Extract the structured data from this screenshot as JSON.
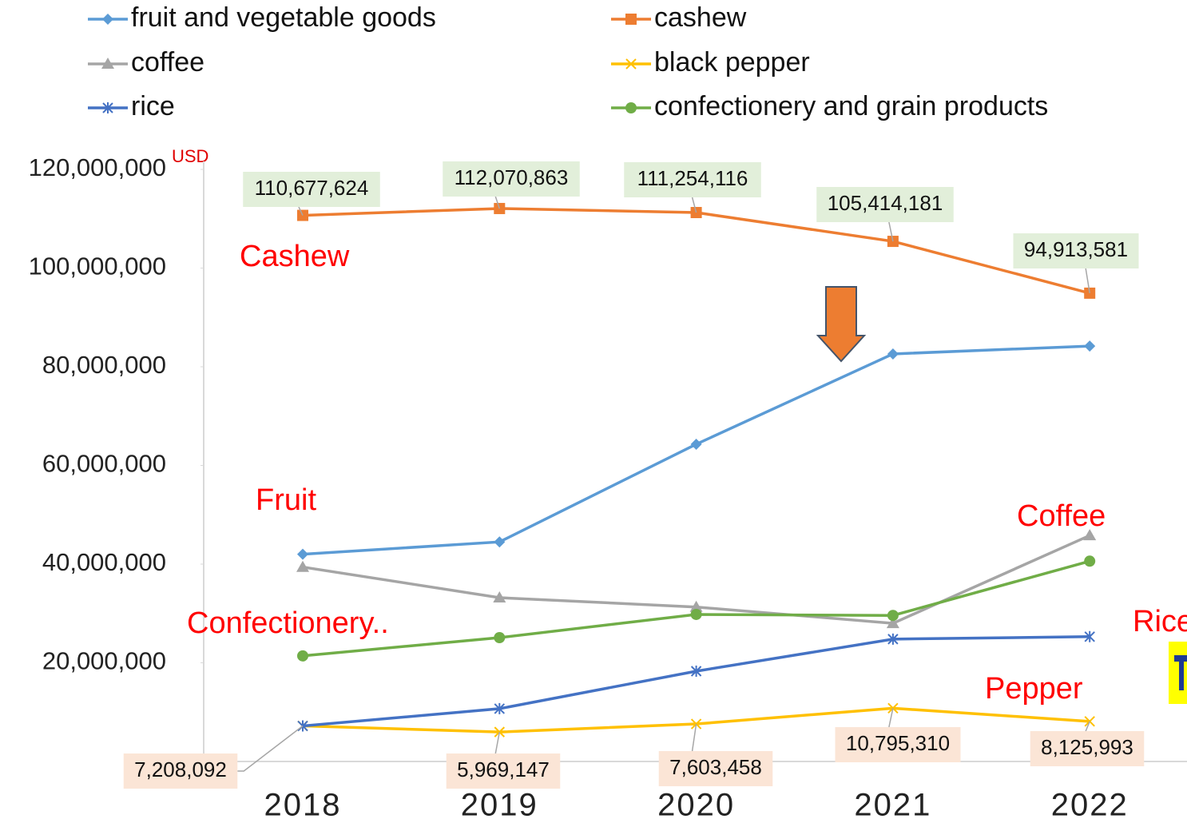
{
  "chart_data": {
    "type": "line",
    "unit_label": "USD",
    "categories": [
      "2018",
      "2019",
      "2020",
      "2021",
      "2022"
    ],
    "ylim": [
      0,
      120000000
    ],
    "yticks": [
      {
        "value": 20000000,
        "label": "20,000,000"
      },
      {
        "value": 40000000,
        "label": "40,000,000"
      },
      {
        "value": 60000000,
        "label": "60,000,000"
      },
      {
        "value": 80000000,
        "label": "80,000,000"
      },
      {
        "value": 100000000,
        "label": "100,000,000"
      },
      {
        "value": 120000000,
        "label": "120,000,000"
      }
    ],
    "grid": false,
    "legend": "top",
    "series": [
      {
        "name": "fruit and vegetable goods",
        "color": "#5b9bd5",
        "marker": "diamond",
        "values": [
          42000000,
          44500000,
          64300000,
          82600000,
          84200000
        ]
      },
      {
        "name": "cashew",
        "color": "#ed7d31",
        "marker": "square",
        "values": [
          110677624,
          112070863,
          111254116,
          105414181,
          94913581
        ],
        "value_labels": [
          "110,677,624",
          "112,070,863",
          "111,254,116",
          "105,414,181",
          "94,913,581"
        ]
      },
      {
        "name": "coffee",
        "color": "#a5a5a5",
        "marker": "triangle",
        "values": [
          39400000,
          33200000,
          31300000,
          28000000,
          45800000
        ]
      },
      {
        "name": "black pepper",
        "color": "#ffc000",
        "marker": "x",
        "values": [
          7208092,
          5969147,
          7603458,
          10795310,
          8125993
        ],
        "value_labels": [
          "7,208,092",
          "5,969,147",
          "7,603,458",
          "10,795,310",
          "8,125,993"
        ]
      },
      {
        "name": "rice",
        "color": "#4472c4",
        "marker": "star",
        "values": [
          7200000,
          10700000,
          18300000,
          24800000,
          25300000
        ]
      },
      {
        "name": "confectionery and grain products",
        "color": "#70ad47",
        "marker": "circle",
        "values": [
          21400000,
          25100000,
          29800000,
          29600000,
          40600000
        ]
      }
    ],
    "annotations": [
      "Cashew",
      "Fruit",
      "Coffee",
      "Confectionery..",
      "Rice",
      "Pepper"
    ]
  }
}
